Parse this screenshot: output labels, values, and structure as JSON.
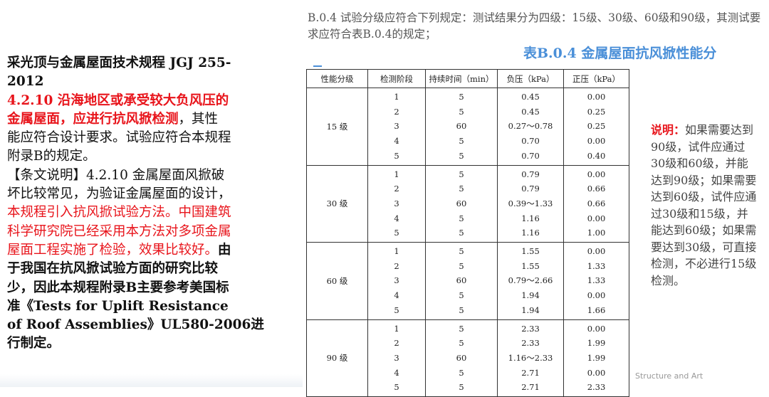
{
  "left_text": {
    "lines": [
      [
        {
          "t": "采光顶与金属屋面技术规程 JGJ 255-",
          "c": "blk",
          "b": true
        }
      ],
      [
        {
          "t": "2012",
          "c": "blk",
          "b": true
        }
      ],
      [
        {
          "t": "4.2.10 沿海地区或承受较大负风压的",
          "c": "red",
          "b": true
        }
      ],
      [
        {
          "t": "金属屋面，应进行抗风掀检测",
          "c": "red",
          "b": true
        },
        {
          "t": "，其性",
          "c": "blk",
          "b": false
        }
      ],
      [
        {
          "t": "能应符合设计要求。试验应符合本规程",
          "c": "blk",
          "b": false
        }
      ],
      [
        {
          "t": "附录B的规定。",
          "c": "blk",
          "b": false
        }
      ],
      [
        {
          "t": "【条文说明】4.2.10 金属屋面风掀破",
          "c": "blk",
          "b": false
        }
      ],
      [
        {
          "t": "坏比较常见，为验证金属屋面的设计，",
          "c": "blk",
          "b": false
        }
      ],
      [
        {
          "t": "本规程引入抗风掀试验方法。中国建筑",
          "c": "red",
          "b": false
        }
      ],
      [
        {
          "t": "科学研究院已经采用本方法对多项金属",
          "c": "red",
          "b": false
        }
      ],
      [
        {
          "t": "屋面工程实施了检验，效果比较好。",
          "c": "red",
          "b": false
        },
        {
          "t": "由",
          "c": "blk",
          "b": true
        }
      ],
      [
        {
          "t": "于我国在抗风掀试验方面的研究比较",
          "c": "blk",
          "b": true
        }
      ],
      [
        {
          "t": "少，因此本规程附录B主要参考美国标",
          "c": "blk",
          "b": true
        }
      ],
      [
        {
          "t": "准《Tests for Uplift Resistance",
          "c": "blk",
          "b": true
        }
      ],
      [
        {
          "t": "of Roof Assemblies》UL580-2006进",
          "c": "blk",
          "b": true
        }
      ],
      [
        {
          "t": "行制定。",
          "c": "blk",
          "b": true
        }
      ]
    ]
  },
  "intro": "B.0.4 试验分级应符合下列规定：测试结果分为四级：15级、30级、60级和90级，其测试要求应符合表B.0.4的规定；",
  "caption": "表B.0.4 金属屋面抗风掀性能分",
  "table": {
    "headers": [
      "性能分级",
      "检测阶段",
      "持续时间（min）",
      "负压（kPa）",
      "正压（kPa）"
    ],
    "groups": [
      {
        "grade": "15 级",
        "stages": [
          "1",
          "2",
          "3",
          "4",
          "5"
        ],
        "durations": [
          "5",
          "5",
          "60",
          "5",
          "5"
        ],
        "negative": [
          "0.45",
          "0.45",
          "0.27～0.78",
          "0.70",
          "0.70"
        ],
        "positive": [
          "0.00",
          "0.25",
          "0.25",
          "0.00",
          "0.40"
        ]
      },
      {
        "grade": "30 级",
        "stages": [
          "1",
          "2",
          "3",
          "4",
          "5"
        ],
        "durations": [
          "5",
          "5",
          "60",
          "5",
          "5"
        ],
        "negative": [
          "0.79",
          "0.79",
          "0.39～1.33",
          "1.16",
          "1.16"
        ],
        "positive": [
          "0.00",
          "0.66",
          "0.66",
          "0.00",
          "1.00"
        ]
      },
      {
        "grade": "60 级",
        "stages": [
          "1",
          "2",
          "3",
          "4",
          "5"
        ],
        "durations": [
          "5",
          "5",
          "60",
          "5",
          "5"
        ],
        "negative": [
          "1.55",
          "1.55",
          "0.79～2.66",
          "1.94",
          "1.94"
        ],
        "positive": [
          "0.00",
          "1.33",
          "1.33",
          "0.00",
          "1.66"
        ]
      },
      {
        "grade": "90 级",
        "stages": [
          "1",
          "2",
          "3",
          "4",
          "5"
        ],
        "durations": [
          "5",
          "5",
          "60",
          "5",
          "5"
        ],
        "negative": [
          "2.33",
          "2.33",
          "1.16～2.33",
          "2.71",
          "2.71"
        ],
        "positive": [
          "0.00",
          "1.99",
          "1.99",
          "0.00",
          "2.33"
        ]
      }
    ]
  },
  "note": {
    "label": "说明：",
    "text": "如果需要达到90级，试件应通过30级和60级，并能达到90级；如果需要达到60级，试件应通过30级和15级，并能达到60级；如果需要达到30级，可直接检测，不必进行15级检测。"
  },
  "watermark": "Structure and Art",
  "colors": {
    "red": "#e8141b",
    "caption_blue": "#4a8fd8"
  }
}
